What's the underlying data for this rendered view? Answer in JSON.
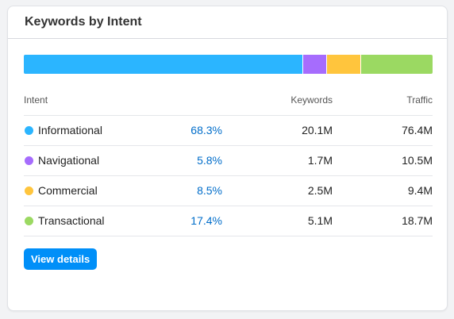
{
  "card": {
    "title": "Keywords by Intent"
  },
  "colors": {
    "informational": "#2bb5ff",
    "navigational": "#a66cfd",
    "commercial": "#ffc53d",
    "transactional": "#9bd962",
    "link": "#006dca",
    "button": "#008ff8"
  },
  "table": {
    "headers": {
      "intent": "Intent",
      "keywords": "Keywords",
      "traffic": "Traffic"
    },
    "rows": [
      {
        "intent": "Informational",
        "share": "68.3%",
        "share_value": 68.3,
        "keywords": "20.1M",
        "traffic": "76.4M",
        "color": "#2bb5ff"
      },
      {
        "intent": "Navigational",
        "share": "5.8%",
        "share_value": 5.8,
        "keywords": "1.7M",
        "traffic": "10.5M",
        "color": "#a66cfd"
      },
      {
        "intent": "Commercial",
        "share": "8.5%",
        "share_value": 8.5,
        "keywords": "2.5M",
        "traffic": "9.4M",
        "color": "#ffc53d"
      },
      {
        "intent": "Transactional",
        "share": "17.4%",
        "share_value": 17.4,
        "keywords": "5.1M",
        "traffic": "18.7M",
        "color": "#9bd962"
      }
    ]
  },
  "actions": {
    "view_details_label": "View details"
  }
}
